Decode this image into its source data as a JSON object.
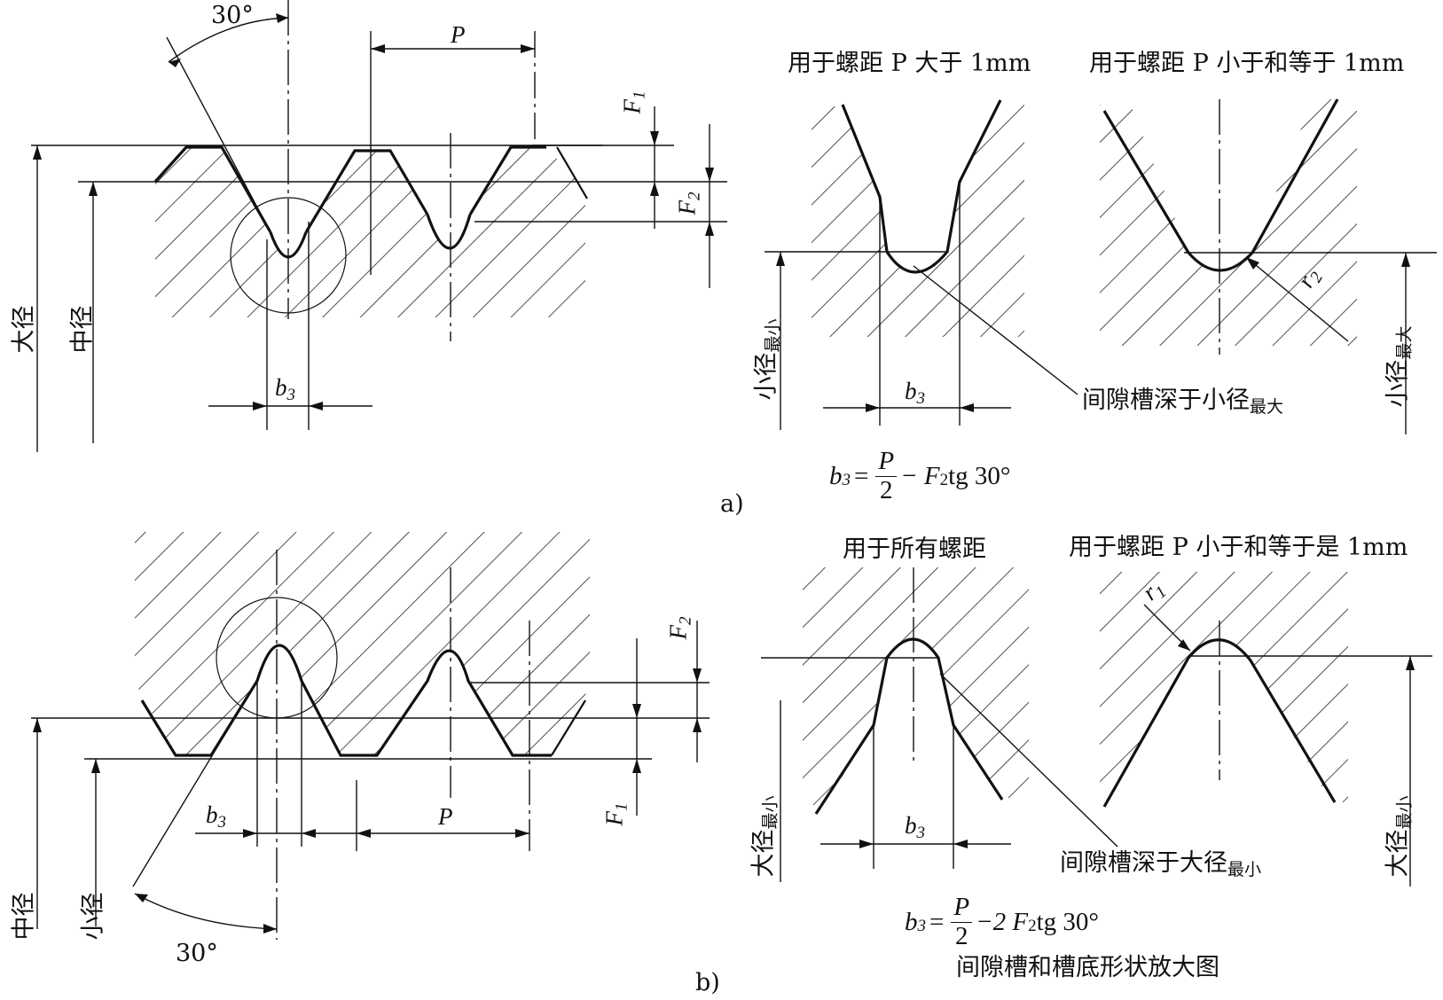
{
  "angle_label": "30°",
  "pitch_label": "P",
  "f1_label": "F",
  "f1_sub": "1",
  "f2_label": "F",
  "f2_sub": "2",
  "b3_label": "b",
  "b3_sub": "3",
  "r1_label": "r",
  "r1_sub": "1",
  "r2_label": "r",
  "r2_sub": "2",
  "part_a": {
    "label": "a)",
    "major_diameter": "大径",
    "pitch_diameter": "中径",
    "minor_diameter_min": "小径",
    "minor_diameter_min_sub": "最小",
    "minor_diameter_max": "小径",
    "minor_diameter_max_sub": "最大",
    "detail_title_left": "用于螺距 P 大于 1mm",
    "detail_title_right": "用于螺距 P 小于和等于 1mm",
    "groove_note": "间隙槽深于小径",
    "groove_note_sub": "最大",
    "formula": {
      "lhs": "b",
      "lhs_sub": "3",
      "eq": "=",
      "num": "P",
      "den": "2",
      "rhs": "− F",
      "rhs_sub": "2",
      "rhs_tail": " tg 30°"
    }
  },
  "part_b": {
    "label": "b)",
    "pitch_diameter": "中径",
    "minor_diameter": "小径",
    "major_diameter_min_left": "大径",
    "major_diameter_min_left_sub": "最小",
    "major_diameter_min_right": "大径",
    "major_diameter_min_right_sub": "最小",
    "detail_title_left": "用于所有螺距",
    "detail_title_right": "用于螺距 P 小于和等于是 1mm",
    "groove_note": "间隙槽深于大径",
    "groove_note_sub": "最小",
    "formula": {
      "lhs": "b",
      "lhs_sub": "3",
      "eq": "=",
      "num": "P",
      "den": "2",
      "rhs": "−2 F",
      "rhs_sub": "2",
      "rhs_tail": " tg 30°"
    },
    "caption": "间隙槽和槽底形状放大图"
  }
}
